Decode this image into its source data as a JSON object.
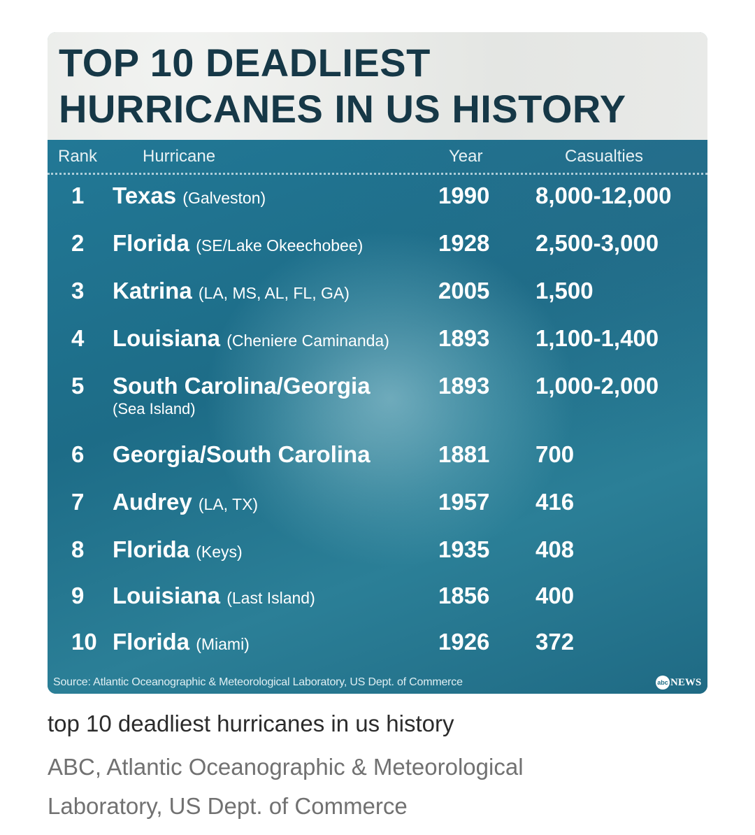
{
  "chart_data": {
    "type": "table",
    "title_lines": [
      "TOP 10 DEADLIEST",
      "HURRICANES IN US HISTORY"
    ],
    "columns": [
      "Rank",
      "Hurricane",
      "Year",
      "Casualties"
    ],
    "rows": [
      {
        "rank": "1",
        "name": "Texas",
        "detail": "(Galveston)",
        "note": "",
        "year": "1990",
        "casualties": "8,000-12,000"
      },
      {
        "rank": "2",
        "name": "Florida",
        "detail": "(SE/Lake Okeechobee)",
        "note": "",
        "year": "1928",
        "casualties": "2,500-3,000"
      },
      {
        "rank": "3",
        "name": "Katrina",
        "detail": "(LA, MS, AL, FL, GA)",
        "note": "",
        "year": "2005",
        "casualties": "1,500"
      },
      {
        "rank": "4",
        "name": "Louisiana",
        "detail": "(Cheniere Caminanda)",
        "note": "",
        "year": "1893",
        "casualties": "1,100-1,400"
      },
      {
        "rank": "5",
        "name": "South Carolina/Georgia",
        "detail": "",
        "note": "(Sea Island)",
        "year": "1893",
        "casualties": "1,000-2,000"
      },
      {
        "rank": "6",
        "name": "Georgia/South Carolina",
        "detail": "",
        "note": "",
        "year": "1881",
        "casualties": "700"
      },
      {
        "rank": "7",
        "name": "Audrey",
        "detail": "(LA, TX)",
        "note": "",
        "year": "1957",
        "casualties": "416"
      },
      {
        "rank": "8",
        "name": "Florida",
        "detail": "(Keys)",
        "note": "",
        "year": "1935",
        "casualties": "408"
      },
      {
        "rank": "9",
        "name": "Louisiana",
        "detail": "(Last Island)",
        "note": "",
        "year": "1856",
        "casualties": "400"
      },
      {
        "rank": "10",
        "name": "Florida",
        "detail": "(Miami)",
        "note": "",
        "year": "1926",
        "casualties": "372"
      }
    ],
    "source": "Source: Atlantic Oceanographic & Meteorological Laboratory, US Dept. of Commerce"
  },
  "logo": {
    "mark": "abc",
    "word": "NEWS"
  },
  "caption": "top 10 deadliest hurricanes in us history",
  "credit_lines": [
    "ABC, Atlantic Oceanographic & Meteorological",
    "Laboratory, US Dept. of Commerce"
  ],
  "colors": {
    "title": "#163847",
    "board": "#1f6e86",
    "caption": "#2b2b2b",
    "credit": "#717171"
  }
}
